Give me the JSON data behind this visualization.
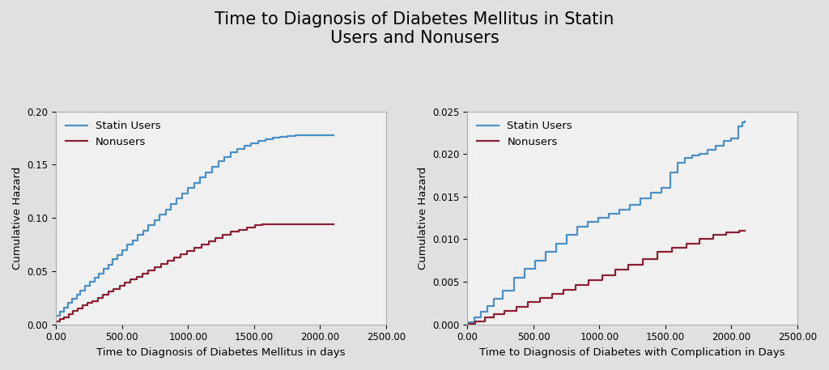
{
  "title": "Time to Diagnosis of Diabetes Mellitus in Statin\nUsers and Nonusers",
  "title_fontsize": 15,
  "background_color": "#e0e0e0",
  "plot_bg_color": "#f0f0f0",
  "plot1": {
    "xlabel": "Time to Diagnosis of Diabetes Mellitus in days",
    "ylabel": "Cumulative Hazard",
    "xlim": [
      0,
      2500
    ],
    "ylim": [
      0,
      0.2
    ],
    "xticks": [
      0,
      500,
      1000,
      1500,
      2000,
      2500
    ],
    "yticks": [
      0.0,
      0.05,
      0.1,
      0.15,
      0.2
    ],
    "statin_color": "#4a90c4",
    "nonuser_color": "#8b2035",
    "statin_x": [
      0,
      30,
      60,
      90,
      120,
      155,
      185,
      220,
      255,
      290,
      325,
      360,
      395,
      430,
      465,
      500,
      540,
      580,
      620,
      660,
      700,
      745,
      785,
      830,
      870,
      915,
      955,
      1000,
      1045,
      1090,
      1135,
      1180,
      1230,
      1275,
      1325,
      1375,
      1425,
      1475,
      1530,
      1585,
      1640,
      1695,
      1755,
      1815,
      1875,
      1930,
      1985,
      2040,
      2085,
      2100
    ],
    "statin_y": [
      0.008,
      0.012,
      0.016,
      0.02,
      0.024,
      0.028,
      0.032,
      0.036,
      0.04,
      0.044,
      0.048,
      0.052,
      0.056,
      0.061,
      0.065,
      0.07,
      0.075,
      0.079,
      0.084,
      0.088,
      0.093,
      0.098,
      0.103,
      0.108,
      0.113,
      0.118,
      0.123,
      0.128,
      0.133,
      0.138,
      0.143,
      0.148,
      0.153,
      0.157,
      0.162,
      0.165,
      0.168,
      0.17,
      0.172,
      0.174,
      0.175,
      0.176,
      0.177,
      0.178,
      0.178,
      0.178,
      0.178,
      0.178,
      0.178,
      0.178
    ],
    "nonuser_x": [
      0,
      30,
      60,
      95,
      130,
      165,
      200,
      240,
      275,
      315,
      355,
      395,
      435,
      480,
      520,
      565,
      610,
      655,
      700,
      745,
      795,
      845,
      895,
      945,
      995,
      1045,
      1100,
      1155,
      1210,
      1265,
      1325,
      1385,
      1445,
      1505,
      1565,
      1630,
      1695,
      1760,
      1825,
      1890,
      1950,
      2010,
      2065,
      2100
    ],
    "nonuser_y": [
      0.003,
      0.005,
      0.007,
      0.01,
      0.013,
      0.015,
      0.018,
      0.02,
      0.022,
      0.025,
      0.028,
      0.031,
      0.033,
      0.036,
      0.039,
      0.042,
      0.045,
      0.048,
      0.051,
      0.054,
      0.057,
      0.06,
      0.063,
      0.066,
      0.069,
      0.072,
      0.075,
      0.078,
      0.081,
      0.084,
      0.087,
      0.089,
      0.091,
      0.093,
      0.094,
      0.094,
      0.094,
      0.094,
      0.094,
      0.094,
      0.094,
      0.094,
      0.094,
      0.094
    ]
  },
  "plot2": {
    "xlabel": "Time to Diagnosis of Diabetes with Complication in Days",
    "ylabel": "Cumulative Hazard",
    "xlim": [
      0,
      2500
    ],
    "ylim": [
      0,
      0.025
    ],
    "xticks": [
      0,
      500,
      1000,
      1500,
      2000,
      2500
    ],
    "yticks": [
      0.0,
      0.005,
      0.01,
      0.015,
      0.02,
      0.025
    ],
    "statin_color": "#4a90c4",
    "nonuser_color": "#8b2035",
    "statin_x": [
      0,
      50,
      100,
      150,
      200,
      270,
      350,
      430,
      510,
      590,
      670,
      750,
      830,
      910,
      990,
      1070,
      1150,
      1230,
      1310,
      1390,
      1470,
      1540,
      1590,
      1650,
      1700,
      1760,
      1820,
      1880,
      1940,
      2000,
      2050,
      2085,
      2100
    ],
    "statin_y": [
      0.0003,
      0.0008,
      0.0015,
      0.0022,
      0.003,
      0.004,
      0.0055,
      0.0065,
      0.0075,
      0.0085,
      0.0095,
      0.0105,
      0.0115,
      0.012,
      0.0125,
      0.013,
      0.0135,
      0.014,
      0.0148,
      0.0155,
      0.016,
      0.0178,
      0.019,
      0.0195,
      0.0198,
      0.02,
      0.0205,
      0.021,
      0.0215,
      0.0218,
      0.0233,
      0.0237,
      0.0238
    ],
    "nonuser_x": [
      0,
      60,
      130,
      200,
      280,
      370,
      460,
      550,
      640,
      730,
      820,
      920,
      1020,
      1120,
      1220,
      1330,
      1440,
      1550,
      1660,
      1760,
      1860,
      1960,
      2060,
      2100
    ],
    "nonuser_y": [
      0.0001,
      0.0004,
      0.0008,
      0.0012,
      0.0016,
      0.0021,
      0.0026,
      0.0031,
      0.0036,
      0.0041,
      0.0046,
      0.0052,
      0.0058,
      0.0064,
      0.007,
      0.0077,
      0.0085,
      0.009,
      0.0095,
      0.01,
      0.0105,
      0.0108,
      0.011,
      0.011
    ]
  },
  "legend_statin_label": "Statin Users",
  "legend_nonuser_label": "Nonusers",
  "axis_label_fontsize": 9.5,
  "tick_label_fontsize": 8.5,
  "legend_fontsize": 9.5,
  "line_width": 1.6
}
